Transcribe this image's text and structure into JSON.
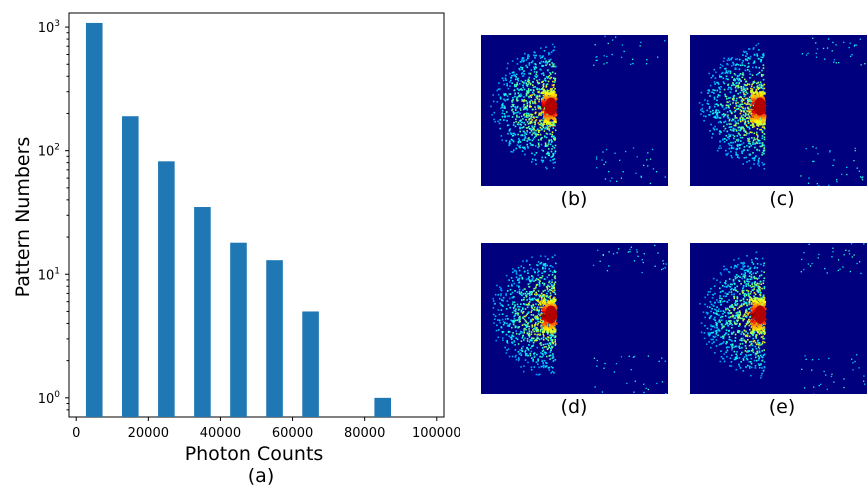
{
  "chart_data": [
    {
      "type": "bar",
      "xlabel": "Photon Counts",
      "ylabel": "Pattern Numbers",
      "caption": "(a)",
      "yscale": "log",
      "xlim": [
        -2000,
        102000
      ],
      "ylim": [
        0.7,
        1300
      ],
      "bar_width": 5000,
      "x_ticks": [
        0,
        20000,
        40000,
        60000,
        80000,
        100000
      ],
      "x_tick_labels": [
        "0",
        "20000",
        "40000",
        "60000",
        "80000",
        "100000"
      ],
      "y_ticks": [
        1,
        10,
        100,
        1000
      ],
      "y_tick_labels": [
        {
          "base": "10",
          "exp": "0"
        },
        {
          "base": "10",
          "exp": "1"
        },
        {
          "base": "10",
          "exp": "2"
        },
        {
          "base": "10",
          "exp": "3"
        }
      ],
      "bar_color": "#1f77b4",
      "bars": [
        {
          "x": 5000,
          "y": 1080
        },
        {
          "x": 15000,
          "y": 190
        },
        {
          "x": 25000,
          "y": 82
        },
        {
          "x": 35000,
          "y": 35
        },
        {
          "x": 45000,
          "y": 18
        },
        {
          "x": 55000,
          "y": 13
        },
        {
          "x": 65000,
          "y": 5
        },
        {
          "x": 85000,
          "y": 1
        }
      ]
    }
  ],
  "patterns": {
    "colormap": "jet",
    "background_color": "#00007f",
    "panels": [
      {
        "label": "(b)",
        "seed": 11
      },
      {
        "label": "(c)",
        "seed": 23
      },
      {
        "label": "(d)",
        "seed": 37
      },
      {
        "label": "(e)",
        "seed": 51
      }
    ]
  }
}
